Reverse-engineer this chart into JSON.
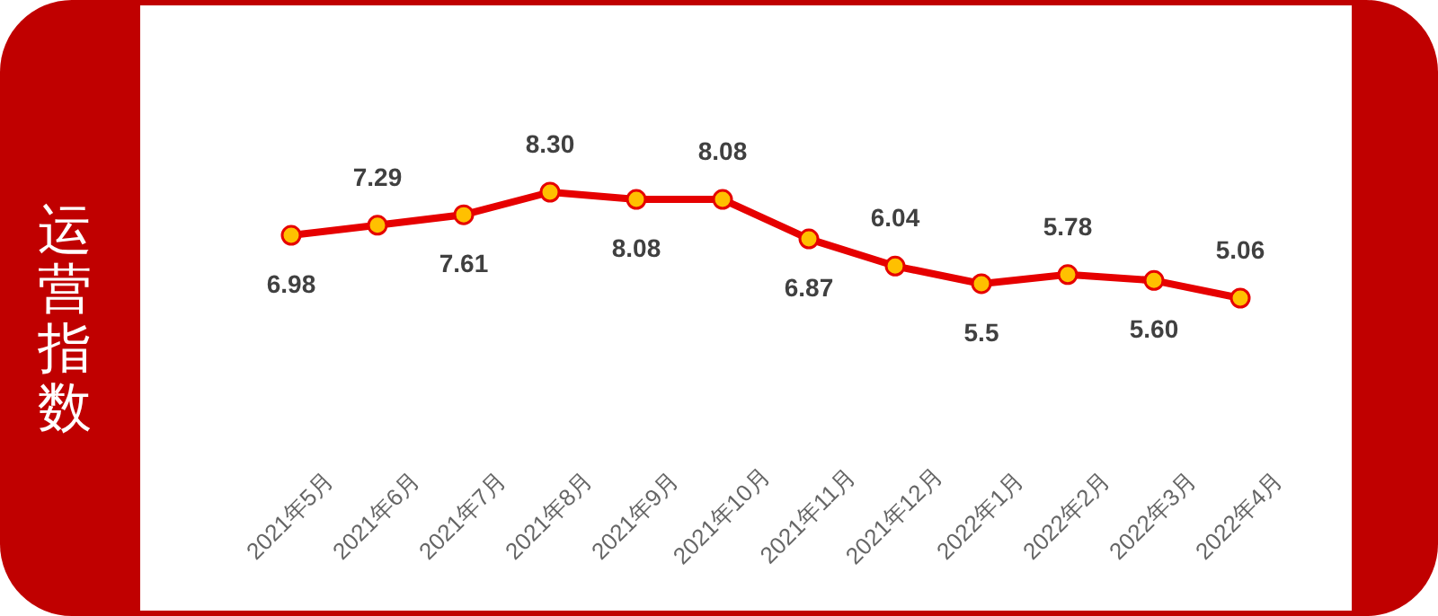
{
  "chart_data": {
    "type": "line",
    "ylabel": "运营指数",
    "categories": [
      "2021年5月",
      "2021年6月",
      "2021年7月",
      "2021年8月",
      "2021年9月",
      "2021年10月",
      "2021年11月",
      "2021年12月",
      "2022年1月",
      "2022年2月",
      "2022年3月",
      "2022年4月"
    ],
    "values": [
      6.98,
      7.29,
      7.61,
      8.3,
      8.08,
      8.08,
      6.87,
      6.04,
      5.5,
      5.78,
      5.6,
      5.06
    ],
    "value_labels": [
      "6.98",
      "7.29",
      "7.61",
      "8.30",
      "8.08",
      "8.08",
      "6.87",
      "6.04",
      "5.5",
      "5.78",
      "5.60",
      "5.06"
    ],
    "color": "#e60000",
    "marker": "circle",
    "line_style": "solid",
    "tick_labels": "x"
  }
}
